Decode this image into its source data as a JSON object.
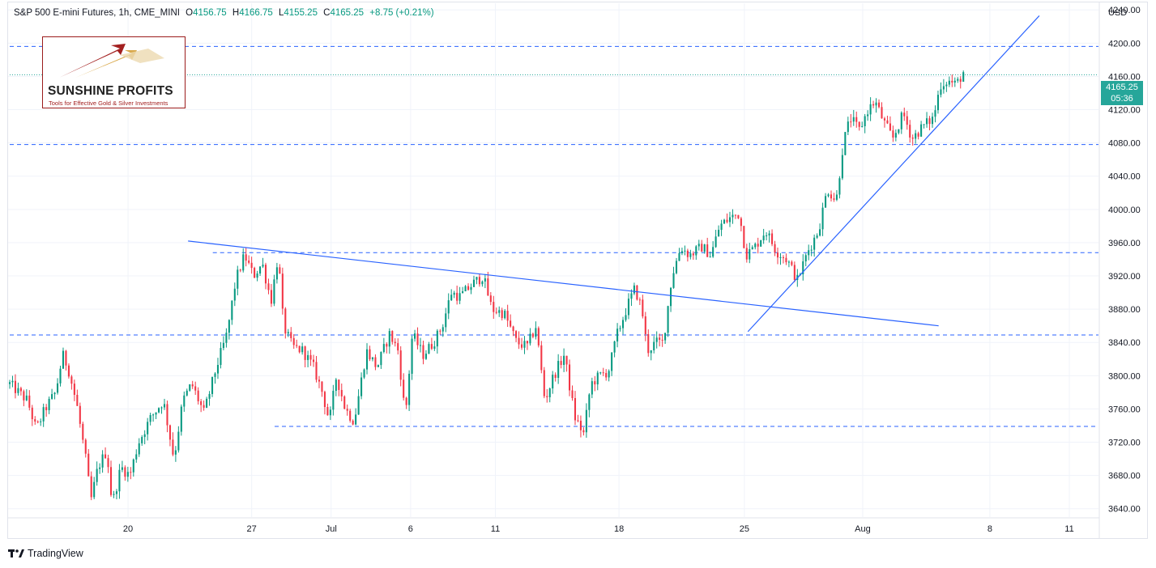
{
  "header": {
    "symbol": "S&P 500 E-mini Futures, 1h, CME_MINI",
    "open_label": "O",
    "open": "4156.75",
    "high_label": "H",
    "high": "4166.75",
    "low_label": "L",
    "low": "4155.25",
    "close_label": "C",
    "close": "4165.25",
    "change": "+8.75 (+0.21%)"
  },
  "currency": "USD",
  "logo": {
    "title": "SUNSHINE PROFITS",
    "tagline": "Tools for Effective Gold & Silver Investments"
  },
  "last_price": {
    "value": "4165.25",
    "countdown": "05:36"
  },
  "footer": {
    "brand": "TradingView"
  },
  "colors": {
    "up": "#089981",
    "down": "#f23645",
    "line": "#2962ff",
    "last": "#26a69a"
  },
  "chart_data": {
    "type": "candlestick",
    "y_ticks": [
      "4240.00",
      "4200.00",
      "4160.00",
      "4120.00",
      "4080.00",
      "4040.00",
      "4000.00",
      "3960.00",
      "3920.00",
      "3880.00",
      "3840.00",
      "3800.00",
      "3760.00",
      "3720.00",
      "3680.00",
      "3640.00"
    ],
    "x_ticks": [
      {
        "label": "20",
        "t": 6.7
      },
      {
        "label": "27",
        "t": 13.7
      },
      {
        "label": "Jul",
        "t": 18.2
      },
      {
        "label": "6",
        "t": 22.7
      },
      {
        "label": "11",
        "t": 27.5
      },
      {
        "label": "18",
        "t": 34.5
      },
      {
        "label": "25",
        "t": 41.6
      },
      {
        "label": "Aug",
        "t": 48.3
      },
      {
        "label": "8",
        "t": 55.5
      },
      {
        "label": "11",
        "t": 60.0
      }
    ],
    "ylim": [
      3630,
      4248
    ],
    "xlim": [
      0,
      62.5
    ],
    "horizontal_levels": [
      {
        "y": 4196,
        "t0": 0,
        "t1": 62.5
      },
      {
        "y": 4162,
        "t0": 0,
        "t1": 62.5,
        "dotted": true
      },
      {
        "y": 4078,
        "t0": 0,
        "t1": 62.5
      },
      {
        "y": 3948,
        "t0": 11.5,
        "t1": 62.5
      },
      {
        "y": 3849,
        "t0": 0,
        "t1": 62.5
      },
      {
        "y": 3739,
        "t0": 15,
        "t1": 62.5
      }
    ],
    "trendlines": [
      {
        "t0": 10.1,
        "y0": 3962,
        "t1": 52.6,
        "y1": 3860
      },
      {
        "t0": 41.8,
        "y0": 3853,
        "t1": 58.3,
        "y1": 4233
      }
    ],
    "path": [
      [
        0,
        3790
      ],
      [
        1,
        3770
      ],
      [
        1.5,
        3735
      ],
      [
        2,
        3760
      ],
      [
        2.6,
        3780
      ],
      [
        3,
        3825
      ],
      [
        3.3,
        3810
      ],
      [
        3.8,
        3765
      ],
      [
        4.3,
        3700
      ],
      [
        4.6,
        3650
      ],
      [
        5,
        3690
      ],
      [
        5.5,
        3710
      ],
      [
        5.8,
        3645
      ],
      [
        6.3,
        3690
      ],
      [
        6.8,
        3680
      ],
      [
        7.3,
        3720
      ],
      [
        8,
        3750
      ],
      [
        8.7,
        3770
      ],
      [
        9.3,
        3700
      ],
      [
        9.8,
        3770
      ],
      [
        10.3,
        3790
      ],
      [
        11,
        3755
      ],
      [
        11.7,
        3810
      ],
      [
        12.3,
        3850
      ],
      [
        12.8,
        3915
      ],
      [
        13.3,
        3945
      ],
      [
        13.8,
        3920
      ],
      [
        14.3,
        3935
      ],
      [
        14.8,
        3890
      ],
      [
        15.2,
        3945
      ],
      [
        15.5,
        3860
      ],
      [
        16,
        3835
      ],
      [
        16.6,
        3830
      ],
      [
        17.2,
        3810
      ],
      [
        17.7,
        3780
      ],
      [
        18.1,
        3745
      ],
      [
        18.5,
        3800
      ],
      [
        19,
        3760
      ],
      [
        19.5,
        3745
      ],
      [
        20.2,
        3830
      ],
      [
        20.8,
        3810
      ],
      [
        21.5,
        3850
      ],
      [
        22,
        3830
      ],
      [
        22.4,
        3750
      ],
      [
        22.8,
        3850
      ],
      [
        23.4,
        3825
      ],
      [
        24,
        3840
      ],
      [
        24.5,
        3860
      ],
      [
        25,
        3900
      ],
      [
        25.5,
        3895
      ],
      [
        26.2,
        3910
      ],
      [
        26.8,
        3920
      ],
      [
        27.3,
        3880
      ],
      [
        28,
        3875
      ],
      [
        28.7,
        3840
      ],
      [
        29.3,
        3835
      ],
      [
        29.8,
        3860
      ],
      [
        30.3,
        3770
      ],
      [
        30.8,
        3800
      ],
      [
        31.4,
        3825
      ],
      [
        32,
        3750
      ],
      [
        32.5,
        3730
      ],
      [
        32.9,
        3790
      ],
      [
        33.4,
        3800
      ],
      [
        33.9,
        3805
      ],
      [
        34.4,
        3850
      ],
      [
        35,
        3885
      ],
      [
        35.4,
        3905
      ],
      [
        35.8,
        3880
      ],
      [
        36.1,
        3830
      ],
      [
        36.6,
        3840
      ],
      [
        37,
        3840
      ],
      [
        37.5,
        3920
      ],
      [
        38,
        3955
      ],
      [
        38.5,
        3945
      ],
      [
        39.2,
        3955
      ],
      [
        39.7,
        3945
      ],
      [
        40.2,
        3980
      ],
      [
        40.8,
        3990
      ],
      [
        41.3,
        3995
      ],
      [
        41.7,
        3945
      ],
      [
        42.2,
        3955
      ],
      [
        42.8,
        3975
      ],
      [
        43.4,
        3950
      ],
      [
        44,
        3940
      ],
      [
        44.6,
        3915
      ],
      [
        45.2,
        3950
      ],
      [
        45.8,
        3975
      ],
      [
        46.3,
        4025
      ],
      [
        46.8,
        4010
      ],
      [
        47.2,
        4080
      ],
      [
        47.6,
        4110
      ],
      [
        48.1,
        4095
      ],
      [
        48.6,
        4120
      ],
      [
        49,
        4130
      ],
      [
        49.5,
        4105
      ],
      [
        50,
        4085
      ],
      [
        50.6,
        4115
      ],
      [
        51.1,
        4085
      ],
      [
        51.7,
        4100
      ],
      [
        52.3,
        4110
      ],
      [
        52.7,
        4150
      ],
      [
        53.1,
        4155
      ],
      [
        53.6,
        4150
      ],
      [
        54,
        4165
      ]
    ]
  }
}
